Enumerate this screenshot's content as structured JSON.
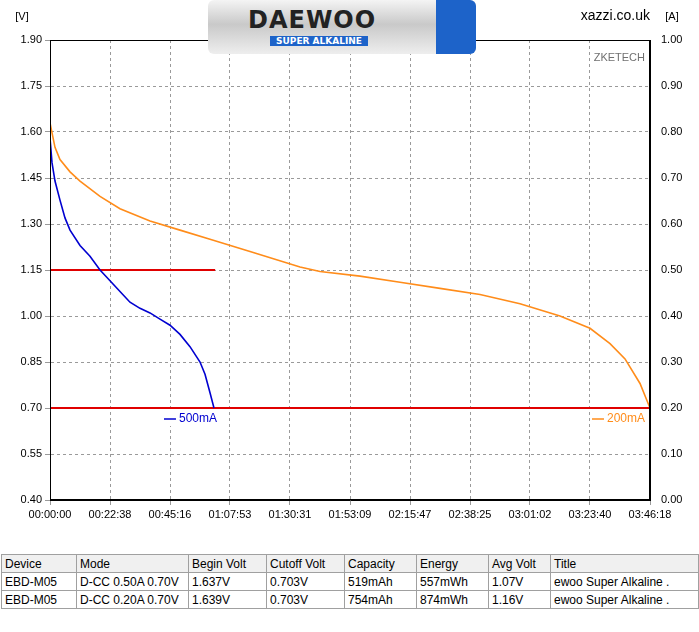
{
  "chart_data": {
    "type": "line",
    "y_label": "[V]",
    "y2_label": "[A]",
    "source": "xazzi.co.uk",
    "watermark": "ZKETECH",
    "image_text": [
      "DAEWOO",
      "SUPER ALKALINE"
    ],
    "xlim": [
      0,
      13578
    ],
    "xticks": [
      {
        "value": 0,
        "label": "00:00:00"
      },
      {
        "value": 1358,
        "label": "00:22:38"
      },
      {
        "value": 2716,
        "label": "00:45:16"
      },
      {
        "value": 4073,
        "label": "01:07:53"
      },
      {
        "value": 5431,
        "label": "01:30:31"
      },
      {
        "value": 6789,
        "label": "01:53:09"
      },
      {
        "value": 8147,
        "label": "02:15:47"
      },
      {
        "value": 9505,
        "label": "02:38:25"
      },
      {
        "value": 10862,
        "label": "03:01:02"
      },
      {
        "value": 12220,
        "label": "03:23:40"
      },
      {
        "value": 13578,
        "label": "03:46:18"
      }
    ],
    "ylim": [
      0.4,
      1.9
    ],
    "yticks": [
      {
        "value": 0.4,
        "label": "0.40"
      },
      {
        "value": 0.55,
        "label": "0.55"
      },
      {
        "value": 0.7,
        "label": "0.70"
      },
      {
        "value": 0.85,
        "label": "0.85"
      },
      {
        "value": 1.0,
        "label": "1.00"
      },
      {
        "value": 1.15,
        "label": "1.15"
      },
      {
        "value": 1.3,
        "label": "1.30"
      },
      {
        "value": 1.45,
        "label": "1.45"
      },
      {
        "value": 1.6,
        "label": "1.60"
      },
      {
        "value": 1.75,
        "label": "1.75"
      },
      {
        "value": 1.9,
        "label": "1.90"
      }
    ],
    "y2lim": [
      0,
      1
    ],
    "y2ticks": [
      {
        "value": 0,
        "label": "0.00"
      },
      {
        "value": 0.1,
        "label": "0.10"
      },
      {
        "value": 0.2,
        "label": "0.20"
      },
      {
        "value": 0.3,
        "label": "0.30"
      },
      {
        "value": 0.4,
        "label": "0.40"
      },
      {
        "value": 0.5,
        "label": "0.50"
      },
      {
        "value": 0.6,
        "label": "0.60"
      },
      {
        "value": 0.7,
        "label": "0.70"
      },
      {
        "value": 0.8,
        "label": "0.80"
      },
      {
        "value": 0.9,
        "label": "0.90"
      },
      {
        "value": 1,
        "label": "1.00"
      }
    ],
    "grid": true,
    "legend": "bottom",
    "series": [
      {
        "name": "500mA",
        "color": "#0000d0",
        "x": [
          0,
          45,
          113,
          226,
          339,
          453,
          679,
          905,
          1132,
          1358,
          1584,
          1810,
          2037,
          2263,
          2489,
          2716,
          2942,
          3168,
          3395,
          3508,
          3621,
          3711
        ],
        "values": [
          1.58,
          1.5,
          1.44,
          1.378,
          1.32,
          1.28,
          1.23,
          1.195,
          1.15,
          1.115,
          1.08,
          1.045,
          1.025,
          1.01,
          0.99,
          0.97,
          0.94,
          0.9,
          0.85,
          0.81,
          0.75,
          0.7
        ]
      },
      {
        "name": "200mA",
        "color": "#ff8c1a",
        "x": [
          0,
          113,
          226,
          453,
          679,
          1132,
          1584,
          2263,
          2942,
          3621,
          4526,
          5658,
          6110,
          7015,
          7921,
          8826,
          9731,
          10636,
          11541,
          12220,
          12673,
          13013,
          13352,
          13578
        ],
        "values": [
          1.63,
          1.55,
          1.51,
          1.47,
          1.44,
          1.39,
          1.35,
          1.31,
          1.28,
          1.25,
          1.21,
          1.16,
          1.145,
          1.13,
          1.11,
          1.09,
          1.07,
          1.04,
          1.0,
          0.96,
          0.91,
          0.86,
          0.78,
          0.7
        ]
      },
      {
        "color": "#e00000",
        "axis": "y2",
        "x": [
          0,
          0,
          3737
        ],
        "values": [
          0,
          0.5,
          0.5
        ]
      },
      {
        "color": "#e00000",
        "axis": "y2",
        "x": [
          0,
          0,
          13578
        ],
        "values": [
          0,
          0.2,
          0.2
        ]
      }
    ]
  },
  "table": {
    "columns": [
      "Device",
      "Mode",
      "Begin Volt",
      "Cutoff Volt",
      "Capacity",
      "Energy",
      "Avg Volt",
      "Title"
    ],
    "rows": [
      [
        "EBD-M05",
        "D-CC 0.50A 0.70V",
        "1.637V",
        "0.703V",
        "519mAh",
        "557mWh",
        "1.07V",
        "ewoo Super Alkaline ."
      ],
      [
        "EBD-M05",
        "D-CC 0.20A 0.70V",
        "1.639V",
        "0.703V",
        "754mAh",
        "874mWh",
        "1.16V",
        "ewoo Super Alkaline ."
      ]
    ]
  }
}
